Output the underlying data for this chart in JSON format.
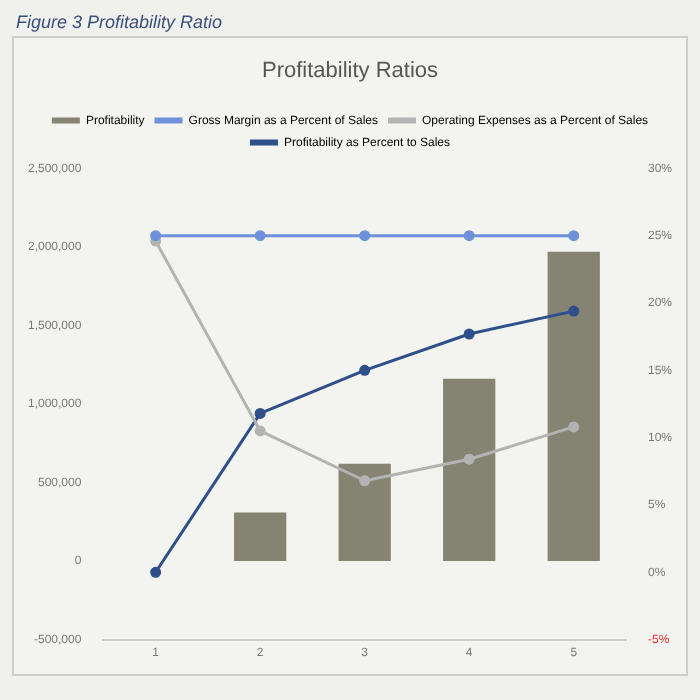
{
  "chart_data": {
    "type": "bar",
    "title": "Profitability Ratios",
    "annotations": [
      "Figure 3 Profitability Ratio"
    ],
    "categories": [
      "1",
      "2",
      "3",
      "4",
      "5"
    ],
    "series": [
      {
        "name": "Profitability",
        "color": "#858372",
        "values": [
          0,
          310000,
          620000,
          1160000,
          1970000
        ]
      },
      {
        "name": "Gross Margin as a Percent of Sales",
        "type": "line",
        "axis": "y2",
        "color": "#6f91d9",
        "values": [
          25,
          25,
          25,
          25,
          25
        ]
      },
      {
        "name": "Operating Expenses as a Percent of Sales",
        "type": "line",
        "axis": "y2",
        "color": "#b3b3b3",
        "values": [
          24.6,
          10.5,
          6.8,
          8.4,
          10.8
        ]
      },
      {
        "name": "Profitability as Percent to Sales",
        "type": "line",
        "axis": "y2",
        "color": "#2f4f8a",
        "values": [
          0,
          11.8,
          15,
          17.7,
          19.4
        ]
      }
    ],
    "ylim": [
      -500000,
      2500000
    ],
    "yticks": [
      {
        "value": -500000,
        "label": "-500,000"
      },
      0,
      {
        "value": 500000,
        "label": "500,000"
      },
      {
        "value": 1000000,
        "label": "1,000,000"
      },
      {
        "value": 1500000,
        "label": "1,500,000"
      },
      {
        "value": 2000000,
        "label": "2,000,000"
      },
      {
        "value": 2500000,
        "label": "2,500,000"
      }
    ],
    "y2lim": [
      -5,
      30
    ],
    "y2ticks": [
      {
        "value": -5,
        "label": "-5%"
      },
      {
        "value": 0,
        "label": "0%"
      },
      {
        "value": 5,
        "label": "5%"
      },
      {
        "value": 10,
        "label": "10%"
      },
      {
        "value": 15,
        "label": "15%"
      },
      {
        "value": 20,
        "label": "20%"
      },
      {
        "value": 25,
        "label": "25%"
      },
      {
        "value": 30,
        "label": "30%"
      }
    ],
    "grid": false,
    "legend": "top",
    "marker": "circle",
    "line_style": "solid"
  }
}
